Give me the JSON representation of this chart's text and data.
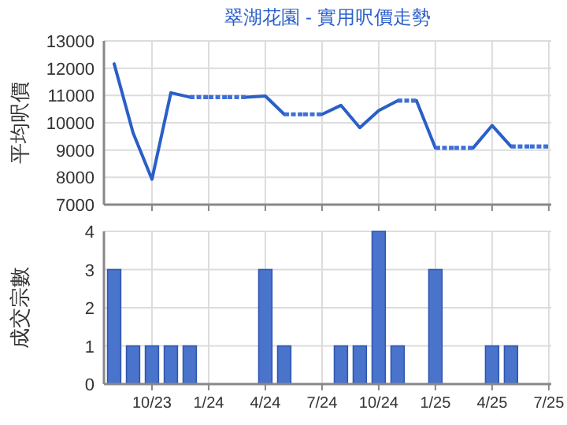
{
  "chart_data": [
    {
      "type": "line",
      "title": "翠湖花園 - 實用呎價走勢",
      "ylabel": "平均呎價",
      "series": [
        {
          "color": "#2a5fc8",
          "line_style": "solid",
          "x": [
            "2023-08",
            "2023-09",
            "2023-10",
            "2023-11",
            "2023-12",
            null,
            "2024-03",
            "2024-04",
            "2024-05",
            null,
            "2024-07",
            "2024-08",
            "2024-09",
            "2024-10",
            "2024-11",
            null,
            "2024-12",
            "2025-01",
            null,
            "2025-03",
            "2025-04",
            "2025-05"
          ],
          "values": [
            12160,
            9630,
            7930,
            11100,
            10940,
            null,
            10940,
            10980,
            10310,
            null,
            10310,
            10640,
            9820,
            10450,
            10810,
            null,
            10810,
            9080,
            null,
            9080,
            9900,
            9130
          ]
        },
        {
          "color": "#3d6fd6",
          "line_style": "dotted",
          "x": [
            "2023-12",
            "2024-01",
            "2024-02",
            "2024-03",
            null,
            "2024-05",
            "2024-06",
            "2024-07",
            null,
            "2024-11",
            "2024-12",
            null,
            "2025-01",
            "2025-02",
            "2025-03",
            null,
            "2025-05",
            "2025-06",
            "2025-07"
          ],
          "values": [
            10940,
            10940,
            10940,
            10940,
            null,
            10310,
            10310,
            10310,
            null,
            10810,
            10810,
            null,
            9080,
            9080,
            9080,
            null,
            9130,
            9130,
            9130
          ]
        }
      ],
      "xlim": [
        "2023-07-15",
        "2025-07-05"
      ],
      "xticks": [
        {
          "value": "2023-10",
          "label": null
        },
        {
          "value": "2024-01",
          "label": null
        },
        {
          "value": "2024-04",
          "label": null
        },
        {
          "value": "2024-07",
          "label": null
        },
        {
          "value": "2024-10",
          "label": null
        },
        {
          "value": "2025-01",
          "label": null
        },
        {
          "value": "2025-04",
          "label": null
        },
        {
          "value": "2025-07",
          "label": null
        }
      ],
      "ylim": [
        7000,
        13000
      ],
      "yticks": [
        7000,
        8000,
        9000,
        10000,
        11000,
        12000,
        13000
      ],
      "tick_labels": "y",
      "grid": true
    },
    {
      "type": "bar",
      "ylabel": "成交宗數",
      "x": [
        "2023-08",
        "2023-09",
        "2023-10",
        "2023-11",
        "2023-12",
        "2024-04",
        "2024-05",
        "2024-08",
        "2024-09",
        "2024-10",
        "2024-11",
        "2025-01",
        "2025-04",
        "2025-05"
      ],
      "values": [
        3,
        1,
        1,
        1,
        1,
        3,
        1,
        1,
        1,
        4,
        1,
        3,
        1,
        1
      ],
      "color": "#4a74cc",
      "xlim": [
        "2023-07-15",
        "2025-07-05"
      ],
      "xticks": [
        {
          "value": "2023-10",
          "label": "10/23"
        },
        {
          "value": "2024-01",
          "label": "1/24"
        },
        {
          "value": "2024-04",
          "label": "4/24"
        },
        {
          "value": "2024-07",
          "label": "7/24"
        },
        {
          "value": "2024-10",
          "label": "10/24"
        },
        {
          "value": "2025-01",
          "label": "1/25"
        },
        {
          "value": "2025-04",
          "label": "4/25"
        },
        {
          "value": "2025-07",
          "label": "7/25"
        }
      ],
      "ylim": [
        0,
        4
      ],
      "yticks": [
        0,
        1,
        2,
        3,
        4
      ],
      "grid": true
    }
  ]
}
